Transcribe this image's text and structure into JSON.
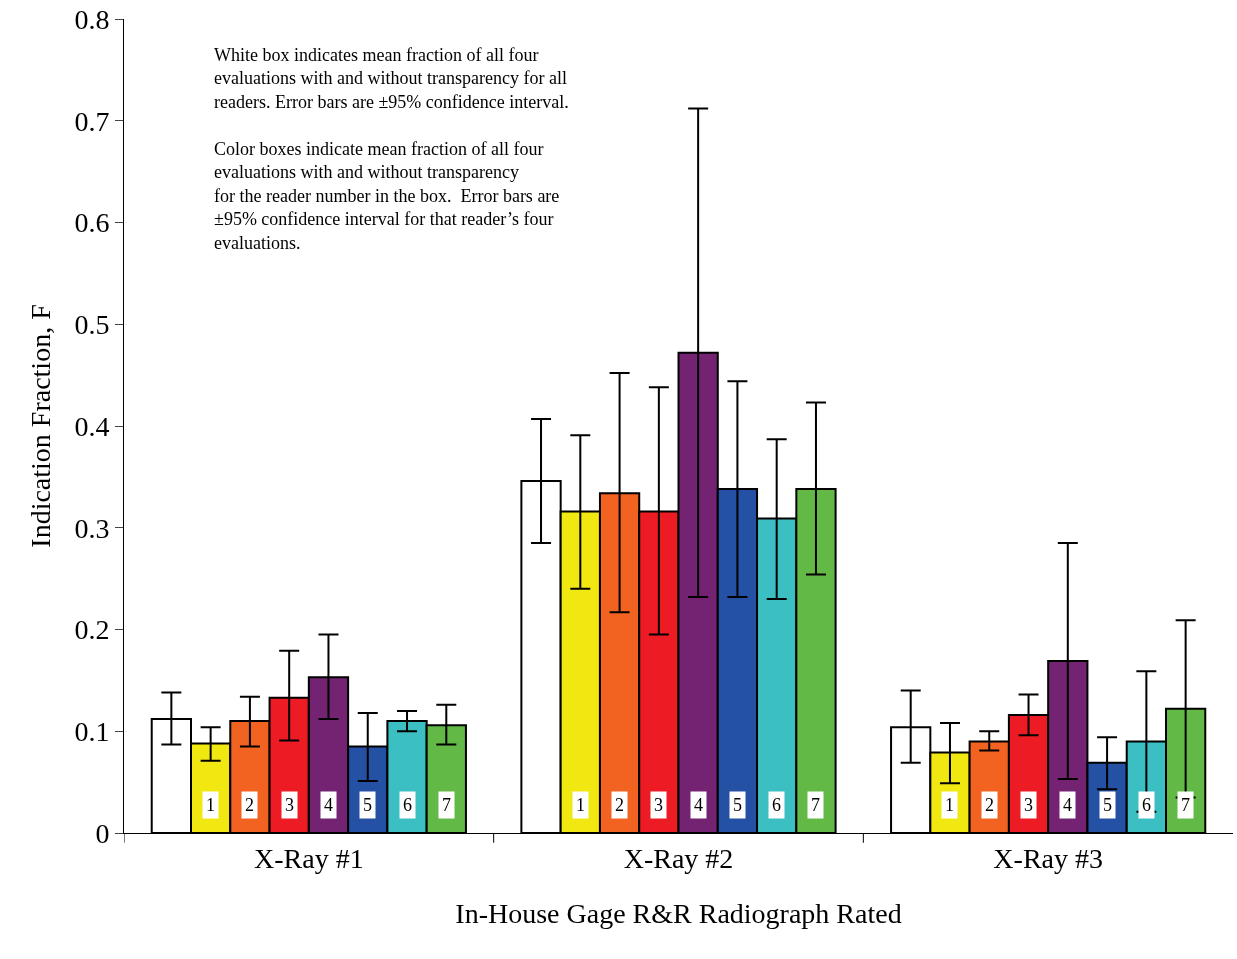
{
  "chart_data": {
    "type": "bar",
    "xlabel": "In-House Gage R&R Radiograph Rated",
    "ylabel": "Indication Fraction, F",
    "categories": [
      "X-Ray #1",
      "X-Ray #2",
      "X-Ray #3"
    ],
    "ylim": [
      0,
      0.8
    ],
    "yticks": [
      0,
      0.1,
      0.2,
      0.3,
      0.4,
      0.5,
      0.6,
      0.7,
      0.8
    ],
    "legend": false,
    "series": [
      {
        "color": "#ffffff",
        "values": [
          0.112,
          0.346,
          0.104
        ],
        "errors": [
          [
            0.087,
            0.138
          ],
          [
            0.285,
            0.407
          ],
          [
            0.069,
            0.14
          ]
        ]
      },
      {
        "name": "1",
        "color": "#f2e811",
        "values": [
          0.088,
          0.316,
          0.079
        ],
        "errors": [
          [
            0.071,
            0.104
          ],
          [
            0.24,
            0.391
          ],
          [
            0.049,
            0.108
          ]
        ]
      },
      {
        "name": "2",
        "color": "#f26322",
        "values": [
          0.11,
          0.334,
          0.09
        ],
        "errors": [
          [
            0.085,
            0.134
          ],
          [
            0.217,
            0.452
          ],
          [
            0.081,
            0.1
          ]
        ]
      },
      {
        "name": "3",
        "color": "#ed1c24",
        "values": [
          0.133,
          0.316,
          0.116
        ],
        "errors": [
          [
            0.091,
            0.179
          ],
          [
            0.195,
            0.438
          ],
          [
            0.096,
            0.136
          ]
        ]
      },
      {
        "name": "4",
        "color": "#732372",
        "values": [
          0.153,
          0.472,
          0.169
        ],
        "errors": [
          [
            0.112,
            0.195
          ],
          [
            0.232,
            0.712
          ],
          [
            0.053,
            0.285
          ]
        ]
      },
      {
        "name": "5",
        "color": "#2451a4",
        "values": [
          0.085,
          0.338,
          0.069
        ],
        "errors": [
          [
            0.051,
            0.118
          ],
          [
            0.232,
            0.444
          ],
          [
            0.043,
            0.094
          ]
        ]
      },
      {
        "name": "6",
        "color": "#3bbfc3",
        "values": [
          0.11,
          0.309,
          0.09
        ],
        "errors": [
          [
            0.1,
            0.12
          ],
          [
            0.23,
            0.387
          ],
          [
            0.021,
            0.159
          ]
        ]
      },
      {
        "name": "7",
        "color": "#62b946",
        "values": [
          0.106,
          0.338,
          0.122
        ],
        "errors": [
          [
            0.087,
            0.126
          ],
          [
            0.254,
            0.423
          ],
          [
            0.035,
            0.209
          ]
        ]
      }
    ],
    "annotations": [
      "White box indicates mean fraction of all four\nevaluations with and without transparency for all\nreaders. Error bars are ±95% confidence interval.",
      "Color boxes indicate mean fraction of all four\nevaluations with and without transparency\nfor the reader number in the box.  Error bars are\n±95% confidence interval for that reader’s four\nevaluations."
    ]
  }
}
